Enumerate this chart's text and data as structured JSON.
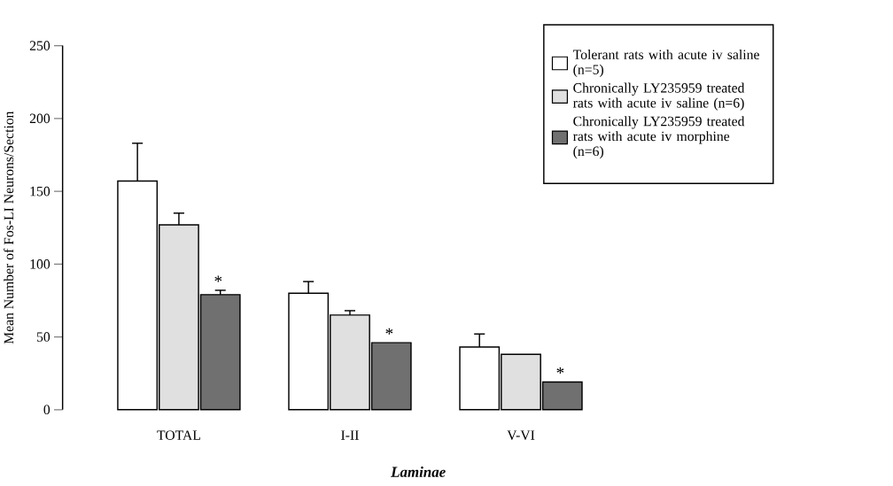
{
  "chart_data": {
    "type": "bar",
    "xlabel": "Laminae",
    "ylabel": "Mean Number of Fos-LI Neurons/Section",
    "categories": [
      "TOTAL",
      "I-II",
      "V-VI"
    ],
    "series": [
      {
        "name": "Tolerant rats with acute iv saline (n=5)",
        "color": "#ffffff",
        "values": [
          157,
          80,
          43
        ],
        "errors": [
          26,
          8,
          9
        ]
      },
      {
        "name": "Chronically LY235959 treated rats with acute iv saline (n=6)",
        "color": "#e0e0e0",
        "values": [
          127,
          65,
          38
        ],
        "errors": [
          8,
          3,
          null
        ]
      },
      {
        "name": "Chronically LY235959 treated rats with acute iv morphine (n=6)",
        "color": "#707070",
        "values": [
          79,
          46,
          19
        ],
        "errors": [
          3,
          null,
          null
        ]
      }
    ],
    "ylim": [
      0,
      250
    ],
    "yticks": [
      0,
      50,
      100,
      150,
      200,
      250
    ],
    "legend": "top right",
    "annotations": [
      "*",
      "*",
      "*"
    ]
  }
}
